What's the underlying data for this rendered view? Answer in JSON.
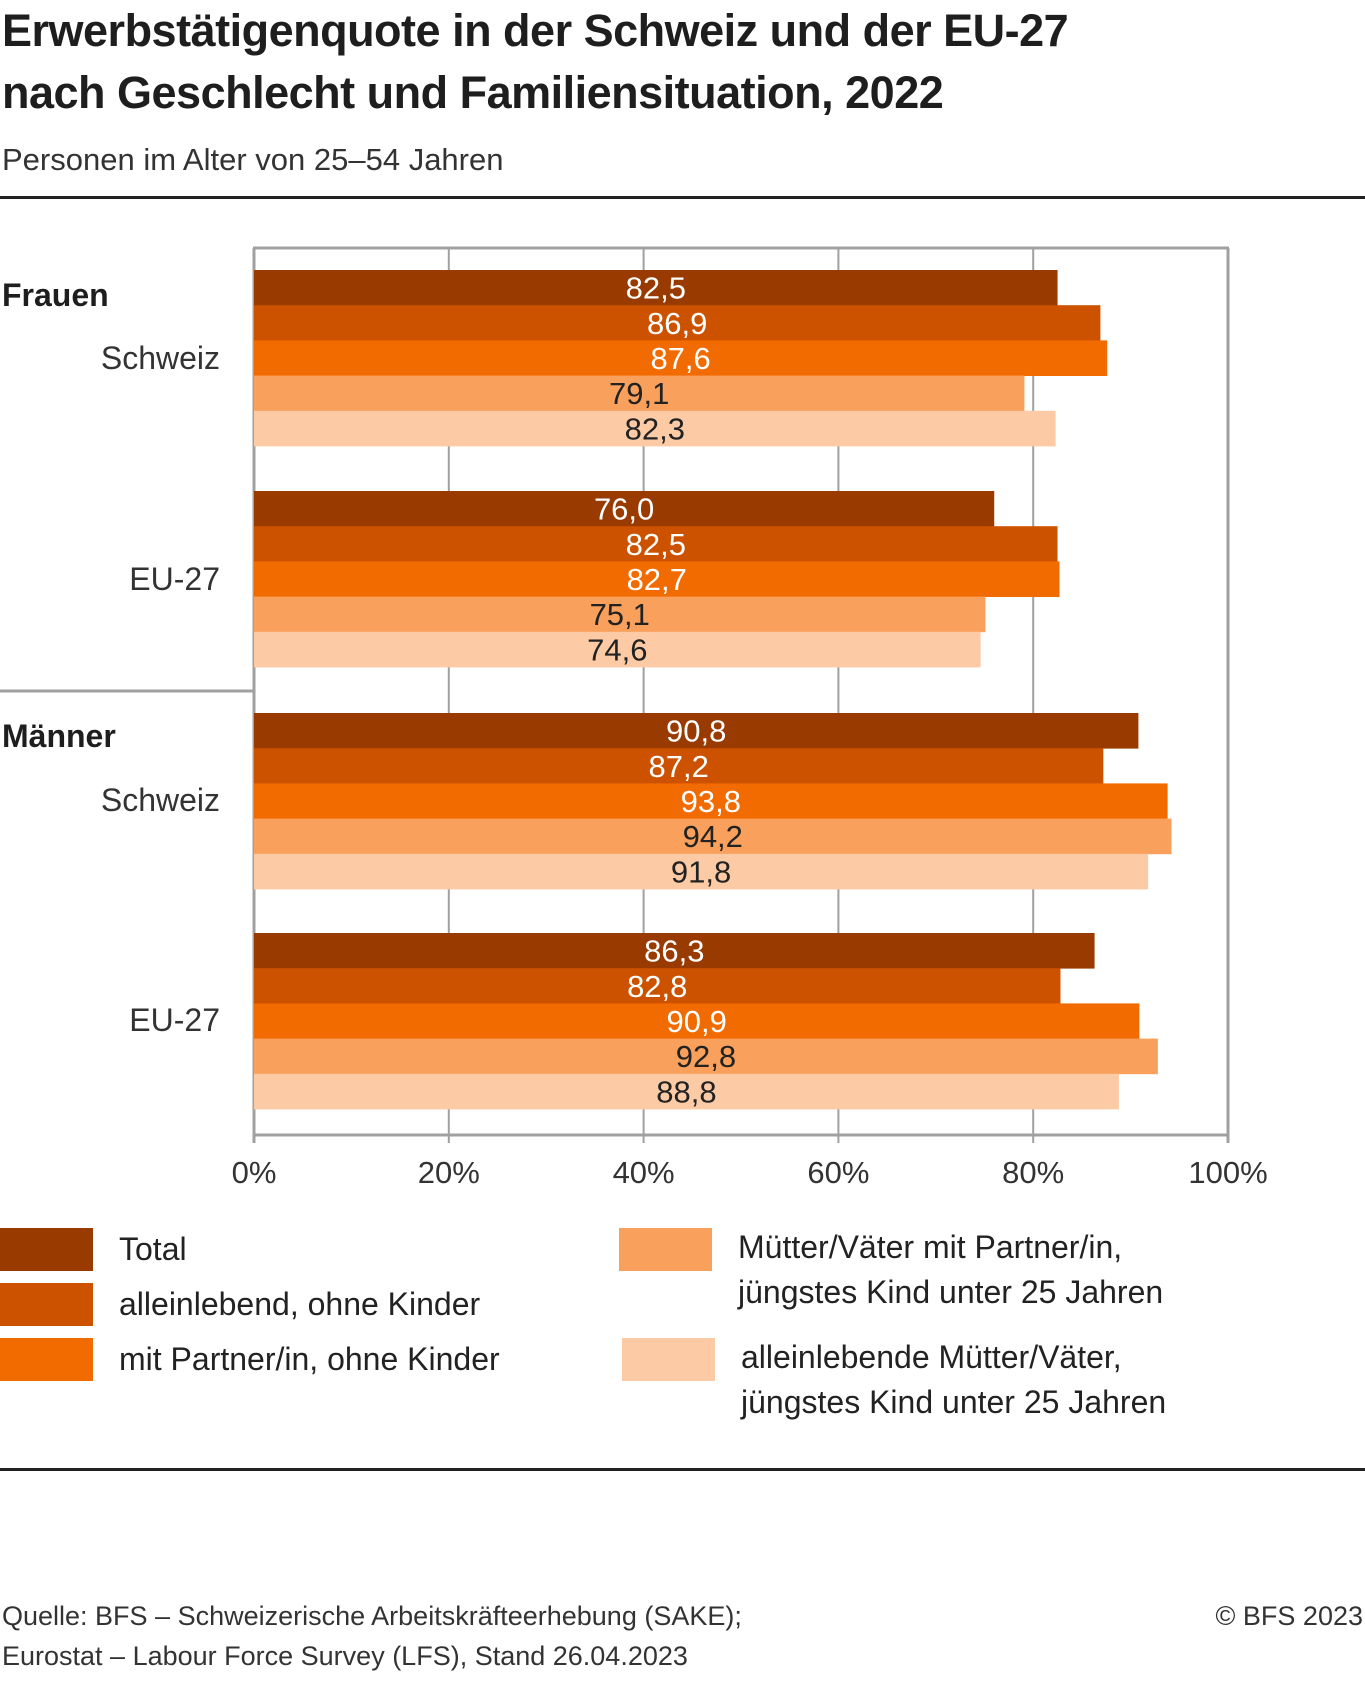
{
  "header": {
    "title_line1": "Erwerbstätigenquote in der Schweiz und der EU-27",
    "title_line2": "nach Geschlecht und Familiensituation, 2022",
    "subtitle": "Personen im Alter von 25–54 Jahren"
  },
  "chart_data": {
    "type": "bar",
    "orientation": "horizontal",
    "title": "Erwerbstätigenquote in der Schweiz und der EU-27 nach Geschlecht und Familiensituation, 2022",
    "subtitle": "Personen im Alter von 25–54 Jahren",
    "xlabel": "",
    "ylabel": "",
    "xlim": [
      0,
      100
    ],
    "x_ticks": [
      "0%",
      "20%",
      "40%",
      "60%",
      "80%",
      "100%"
    ],
    "grid": true,
    "legend_position": "bottom",
    "groups": [
      {
        "name": "Frauen",
        "categories": [
          {
            "name": "Schweiz",
            "values": [
              82.5,
              86.9,
              87.6,
              79.1,
              82.3
            ],
            "labels": [
              "82,5",
              "86,9",
              "87,6",
              "79,1",
              "82,3"
            ]
          },
          {
            "name": "EU-27",
            "values": [
              76.0,
              82.5,
              82.7,
              75.1,
              74.6
            ],
            "labels": [
              "76,0",
              "82,5",
              "82,7",
              "75,1",
              "74,6"
            ]
          }
        ]
      },
      {
        "name": "Männer",
        "categories": [
          {
            "name": "Schweiz",
            "values": [
              90.8,
              87.2,
              93.8,
              94.2,
              91.8
            ],
            "labels": [
              "90,8",
              "87,2",
              "93,8",
              "94,2",
              "91,8"
            ]
          },
          {
            "name": "EU-27",
            "values": [
              86.3,
              82.8,
              90.9,
              92.8,
              88.8
            ],
            "labels": [
              "86,3",
              "82,8",
              "90,9",
              "92,8",
              "88,8"
            ]
          }
        ]
      }
    ],
    "series": [
      {
        "name": "Total",
        "color": "#993a00",
        "label_color": "#ffffff"
      },
      {
        "name": "alleinlebend, ohne Kinder",
        "color": "#cc5200",
        "label_color": "#ffffff"
      },
      {
        "name": "mit Partner/in, ohne Kinder",
        "color": "#f26b00",
        "label_color": "#ffffff"
      },
      {
        "name": "Mütter/Väter mit Partner/in, jüngstes Kind unter 25 Jahren",
        "color": "#f9a05c",
        "label_color": "#222222"
      },
      {
        "name": "alleinlebende Mütter/Väter, jüngstes Kind unter 25 Jahren",
        "color": "#fccba6",
        "label_color": "#222222"
      }
    ]
  },
  "legend": {
    "items": [
      {
        "line1": "Total",
        "line2": "",
        "color": "#993a00"
      },
      {
        "line1": "alleinlebend, ohne Kinder",
        "line2": "",
        "color": "#cc5200"
      },
      {
        "line1": "mit Partner/in, ohne Kinder",
        "line2": "",
        "color": "#f26b00"
      },
      {
        "line1": "Mütter/Väter mit Partner/in,",
        "line2": "jüngstes Kind unter 25 Jahren",
        "color": "#f9a05c"
      },
      {
        "line1": "alleinlebende Mütter/Väter,",
        "line2": "jüngstes Kind unter 25 Jahren",
        "color": "#fccba6"
      }
    ]
  },
  "footer": {
    "source_line1": "Quelle: BFS – Schweizerische Arbeitskräfteerhebung (SAKE);",
    "source_line2": "Eurostat – Labour Force Survey (LFS), Stand 26.04.2023",
    "copyright": "© BFS 2023"
  }
}
